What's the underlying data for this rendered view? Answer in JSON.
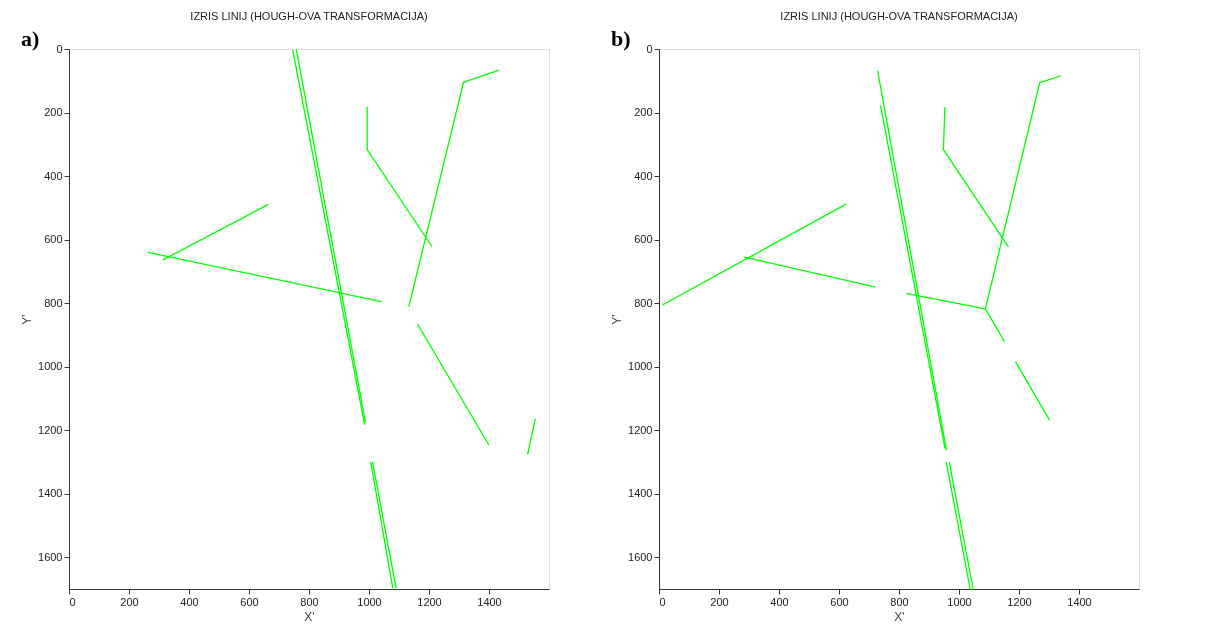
{
  "chart_data": [
    {
      "type": "line",
      "title": "IZRIS LINIJ (HOUGH-OVA TRANSFORMACIJA)",
      "xlabel": "X'",
      "ylabel": "Y'",
      "annotations": [
        "a)"
      ],
      "xlim": [
        0,
        1600
      ],
      "ylim": [
        1700,
        0
      ],
      "xticks": [
        0,
        200,
        400,
        600,
        800,
        1000,
        1200,
        1400
      ],
      "yticks": [
        0,
        200,
        400,
        600,
        800,
        1000,
        1200,
        1400,
        1600
      ],
      "grid": false,
      "legend": false,
      "series": [
        {
          "color": "#00ff00",
          "x": [
            746,
            985
          ],
          "values": [
            4,
            1181
          ]
        },
        {
          "color": "#00ff00",
          "x": [
            758,
            988
          ],
          "values": [
            3,
            1175
          ]
        },
        {
          "color": "#00ff00",
          "x": [
            1006,
            1079
          ],
          "values": [
            1301,
            1696
          ]
        },
        {
          "color": "#00ff00",
          "x": [
            1012,
            1090
          ],
          "values": [
            1301,
            1696
          ]
        },
        {
          "color": "#00ff00",
          "x": [
            263,
            1041
          ],
          "values": [
            640,
            795
          ]
        },
        {
          "color": "#00ff00",
          "x": [
            315,
            663
          ],
          "values": [
            663,
            490
          ]
        },
        {
          "color": "#00ff00",
          "x": [
            994,
            994,
            1209
          ],
          "values": [
            183,
            317,
            621
          ]
        },
        {
          "color": "#00ff00",
          "x": [
            1133,
            1315,
            1431
          ],
          "values": [
            810,
            105,
            67
          ]
        },
        {
          "color": "#00ff00",
          "x": [
            1163,
            1399
          ],
          "values": [
            868,
            1246
          ]
        },
        {
          "color": "#00ff00",
          "x": [
            1529,
            1554
          ],
          "values": [
            1275,
            1166
          ]
        }
      ]
    },
    {
      "type": "line",
      "title": "IZRIS LINIJ (HOUGH-OVA TRANSFORMACIJA)",
      "xlabel": "X'",
      "ylabel": "Y'",
      "annotations": [
        "b)"
      ],
      "xlim": [
        0,
        1600
      ],
      "ylim": [
        1700,
        0
      ],
      "xticks": [
        0,
        200,
        400,
        600,
        800,
        1000,
        1200,
        1400
      ],
      "yticks": [
        0,
        200,
        400,
        600,
        800,
        1000,
        1200,
        1400,
        1600
      ],
      "grid": false,
      "legend": false,
      "series": [
        {
          "color": "#00ff00",
          "x": [
            13,
            622
          ],
          "values": [
            805,
            489
          ]
        },
        {
          "color": "#00ff00",
          "x": [
            285,
            719
          ],
          "values": [
            655,
            749
          ]
        },
        {
          "color": "#00ff00",
          "x": [
            827,
            1088
          ],
          "values": [
            770,
            818
          ]
        },
        {
          "color": "#00ff00",
          "x": [
            1088,
            1269,
            1338
          ],
          "values": [
            818,
            106,
            85
          ]
        },
        {
          "color": "#00ff00",
          "x": [
            1088,
            1151
          ],
          "values": [
            818,
            920
          ]
        },
        {
          "color": "#00ff00",
          "x": [
            1189,
            1301
          ],
          "values": [
            986,
            1167
          ]
        },
        {
          "color": "#00ff00",
          "x": [
            953,
            948,
            1164
          ],
          "values": [
            185,
            317,
            622
          ]
        },
        {
          "color": "#00ff00",
          "x": [
            729,
            958
          ],
          "values": [
            70,
            1262
          ]
        },
        {
          "color": "#00ff00",
          "x": [
            739,
            953
          ],
          "values": [
            180,
            1256
          ]
        },
        {
          "color": "#00ff00",
          "x": [
            958,
            1037
          ],
          "values": [
            1302,
            1700
          ]
        },
        {
          "color": "#00ff00",
          "x": [
            968,
            1047
          ],
          "values": [
            1302,
            1700
          ]
        }
      ]
    }
  ]
}
